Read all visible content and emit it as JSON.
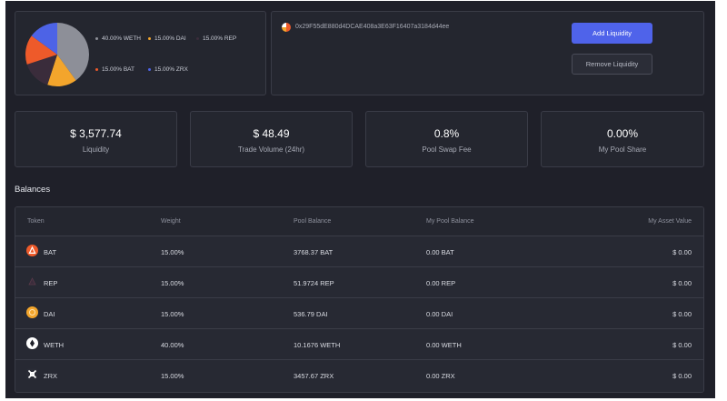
{
  "colors": {
    "weth": "#8d8f98",
    "dai": "#f3a52c",
    "rep": "#3a2c3b",
    "bat": "#ee5a2a",
    "zrx": "#4d63e6",
    "accent": "#4f63ea"
  },
  "pool": {
    "allocation": [
      {
        "token": "WETH",
        "percent": 40,
        "label": "40.00% WETH"
      },
      {
        "token": "DAI",
        "percent": 15,
        "label": "15.00% DAI"
      },
      {
        "token": "REP",
        "percent": 15,
        "label": "15.00% REP"
      },
      {
        "token": "BAT",
        "percent": 15,
        "label": "15.00% BAT"
      },
      {
        "token": "ZRX",
        "percent": 15,
        "label": "15.00% ZRX"
      }
    ],
    "address": "0x29F55dE880d4DCAE408a3E63F16407a3184d44ee",
    "add_liquidity_label": "Add Liquidity",
    "remove_liquidity_label": "Remove Liquidity"
  },
  "stats": [
    {
      "value": "$ 3,577.74",
      "label": "Liquidity"
    },
    {
      "value": "$ 48.49",
      "label": "Trade Volume (24hr)"
    },
    {
      "value": "0.8%",
      "label": "Pool Swap Fee"
    },
    {
      "value": "0.00%",
      "label": "My Pool Share"
    }
  ],
  "balances": {
    "title": "Balances",
    "columns": [
      "Token",
      "Weight",
      "Pool Balance",
      "My Pool Balance",
      "My Asset Value"
    ],
    "rows": [
      {
        "icon": "bat-token-icon",
        "token": "BAT",
        "weight": "15.00%",
        "pool_balance": "3768.37 BAT",
        "my_pool_balance": "0.00 BAT",
        "my_asset_value": "$ 0.00"
      },
      {
        "icon": "rep-token-icon",
        "token": "REP",
        "weight": "15.00%",
        "pool_balance": "51.9724 REP",
        "my_pool_balance": "0.00 REP",
        "my_asset_value": "$ 0.00"
      },
      {
        "icon": "dai-token-icon",
        "token": "DAI",
        "weight": "15.00%",
        "pool_balance": "536.79 DAI",
        "my_pool_balance": "0.00 DAI",
        "my_asset_value": "$ 0.00"
      },
      {
        "icon": "weth-token-icon",
        "token": "WETH",
        "weight": "40.00%",
        "pool_balance": "10.1676 WETH",
        "my_pool_balance": "0.00 WETH",
        "my_asset_value": "$ 0.00"
      },
      {
        "icon": "zrx-token-icon",
        "token": "ZRX",
        "weight": "15.00%",
        "pool_balance": "3457.67 ZRX",
        "my_pool_balance": "0.00 ZRX",
        "my_asset_value": "$ 0.00"
      }
    ]
  }
}
